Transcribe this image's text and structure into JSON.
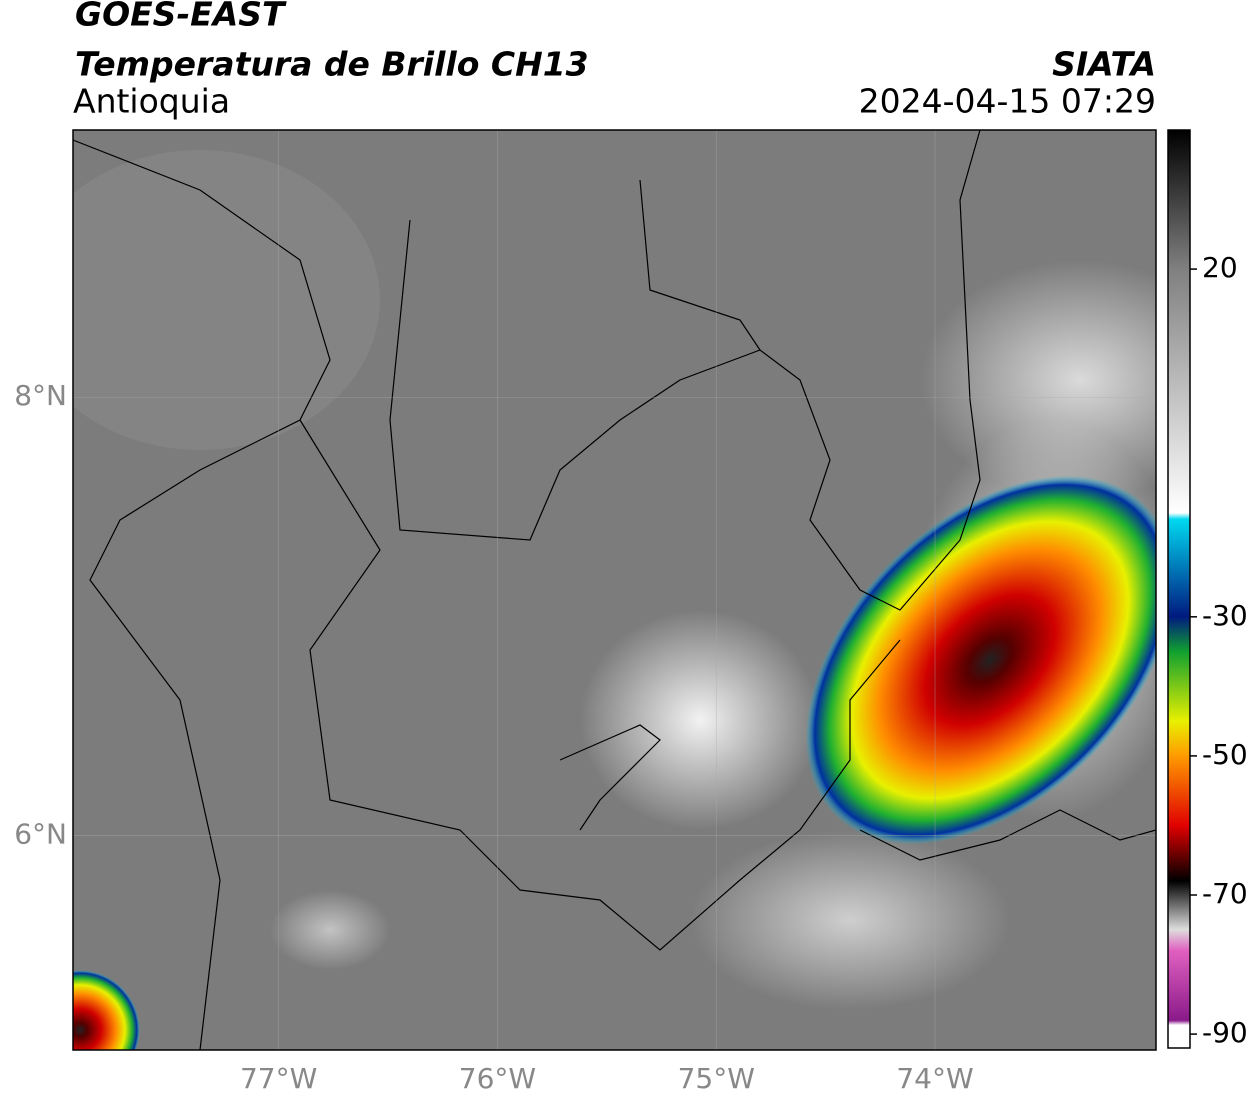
{
  "header": {
    "title": "GOES-EAST",
    "subtitle": "Temperatura de Brillo CH13",
    "region": "Antioquia",
    "agency": "SIATA",
    "datetime": "2024-04-15 07:29"
  },
  "map": {
    "xlim": [
      -77.94,
      -72.99
    ],
    "ylim": [
      5.02,
      9.22
    ],
    "xticks": [
      {
        "value": -77,
        "label": "77°W"
      },
      {
        "value": -76,
        "label": "76°W"
      },
      {
        "value": -75,
        "label": "75°W"
      },
      {
        "value": -74,
        "label": "74°W"
      }
    ],
    "yticks": [
      {
        "value": 8,
        "label": "8°N"
      },
      {
        "value": 6,
        "label": "6°N"
      }
    ]
  },
  "colorbar": {
    "lim": [
      -92,
      40
    ],
    "ticks": [
      20,
      -30,
      -50,
      -70,
      -90
    ]
  }
}
